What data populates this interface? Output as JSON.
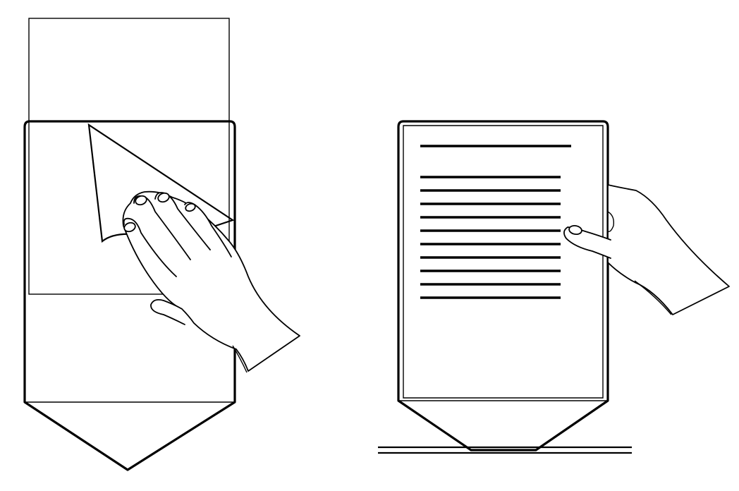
{
  "figure": {
    "panels": [
      {
        "id": "left",
        "depiction": "hand-peeling-protective-film",
        "icons": [
          "device-outline",
          "protective-film",
          "hand"
        ]
      },
      {
        "id": "right",
        "depiction": "hand-holding-device-with-text-lines",
        "text_line_count": 11,
        "icons": [
          "device-outline",
          "text-lines",
          "hand",
          "stand-base"
        ]
      }
    ],
    "colors": {
      "stroke": "#000000",
      "background": "#ffffff"
    }
  }
}
